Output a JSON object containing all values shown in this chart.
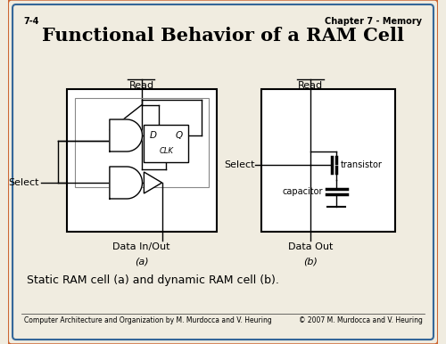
{
  "title": "Functional Behavior of a RAM Cell",
  "slide_num": "7-4",
  "chapter": "Chapter 7 - Memory",
  "bg_color": "#f0ece0",
  "border_color_outer": "#cc6633",
  "border_color_inner": "#336699",
  "caption": "Static RAM cell (a) and dynamic RAM cell (b).",
  "footer_left": "Computer Architecture and Organization by M. Murdocca and V. Heuring",
  "footer_right": "© 2007 M. Murdocca and V. Heuring"
}
